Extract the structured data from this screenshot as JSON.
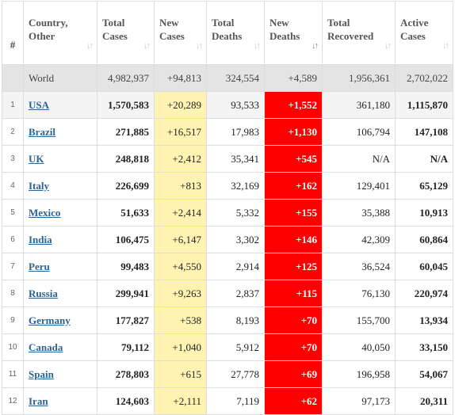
{
  "headers": [
    {
      "key": "idx",
      "line1": "#",
      "line2": ""
    },
    {
      "key": "country",
      "line1": "Country,",
      "line2": "Other"
    },
    {
      "key": "total_cases",
      "line1": "Total",
      "line2": "Cases"
    },
    {
      "key": "new_cases",
      "line1": "New",
      "line2": "Cases"
    },
    {
      "key": "total_deaths",
      "line1": "Total",
      "line2": "Deaths"
    },
    {
      "key": "new_deaths",
      "line1": "New",
      "line2": "Deaths"
    },
    {
      "key": "total_recovered",
      "line1": "Total",
      "line2": "Recovered"
    },
    {
      "key": "active_cases",
      "line1": "Active",
      "line2": "Cases"
    }
  ],
  "sort_glyph": "↓↑",
  "active_sort_column": "new_deaths",
  "world": {
    "country": "World",
    "total_cases": "4,982,937",
    "new_cases": "+94,813",
    "total_deaths": "324,554",
    "new_deaths": "+4,589",
    "total_recovered": "1,956,361",
    "active_cases": "2,702,022"
  },
  "rows": [
    {
      "idx": "1",
      "country": "USA",
      "total_cases": "1,570,583",
      "new_cases": "+20,289",
      "total_deaths": "93,533",
      "new_deaths": "+1,552",
      "total_recovered": "361,180",
      "active_cases": "1,115,870"
    },
    {
      "idx": "2",
      "country": "Brazil",
      "total_cases": "271,885",
      "new_cases": "+16,517",
      "total_deaths": "17,983",
      "new_deaths": "+1,130",
      "total_recovered": "106,794",
      "active_cases": "147,108"
    },
    {
      "idx": "3",
      "country": "UK",
      "total_cases": "248,818",
      "new_cases": "+2,412",
      "total_deaths": "35,341",
      "new_deaths": "+545",
      "total_recovered": "N/A",
      "active_cases": "N/A"
    },
    {
      "idx": "4",
      "country": "Italy",
      "total_cases": "226,699",
      "new_cases": "+813",
      "total_deaths": "32,169",
      "new_deaths": "+162",
      "total_recovered": "129,401",
      "active_cases": "65,129"
    },
    {
      "idx": "5",
      "country": "Mexico",
      "total_cases": "51,633",
      "new_cases": "+2,414",
      "total_deaths": "5,332",
      "new_deaths": "+155",
      "total_recovered": "35,388",
      "active_cases": "10,913"
    },
    {
      "idx": "6",
      "country": "India",
      "total_cases": "106,475",
      "new_cases": "+6,147",
      "total_deaths": "3,302",
      "new_deaths": "+146",
      "total_recovered": "42,309",
      "active_cases": "60,864"
    },
    {
      "idx": "7",
      "country": "Peru",
      "total_cases": "99,483",
      "new_cases": "+4,550",
      "total_deaths": "2,914",
      "new_deaths": "+125",
      "total_recovered": "36,524",
      "active_cases": "60,045"
    },
    {
      "idx": "8",
      "country": "Russia",
      "total_cases": "299,941",
      "new_cases": "+9,263",
      "total_deaths": "2,837",
      "new_deaths": "+115",
      "total_recovered": "76,130",
      "active_cases": "220,974"
    },
    {
      "idx": "9",
      "country": "Germany",
      "total_cases": "177,827",
      "new_cases": "+538",
      "total_deaths": "8,193",
      "new_deaths": "+70",
      "total_recovered": "155,700",
      "active_cases": "13,934"
    },
    {
      "idx": "10",
      "country": "Canada",
      "total_cases": "79,112",
      "new_cases": "+1,040",
      "total_deaths": "5,912",
      "new_deaths": "+70",
      "total_recovered": "40,050",
      "active_cases": "33,150"
    },
    {
      "idx": "11",
      "country": "Spain",
      "total_cases": "278,803",
      "new_cases": "+615",
      "total_deaths": "27,778",
      "new_deaths": "+69",
      "total_recovered": "196,958",
      "active_cases": "54,067"
    },
    {
      "idx": "12",
      "country": "Iran",
      "total_cases": "124,603",
      "new_cases": "+2,111",
      "total_deaths": "7,119",
      "new_deaths": "+62",
      "total_recovered": "97,173",
      "active_cases": "20,311"
    }
  ],
  "colors": {
    "new_cases_bg": "#fff3b1",
    "new_deaths_bg": "#ff0000",
    "world_row_bg": "#e4e4e4",
    "link": "#2a6496"
  }
}
